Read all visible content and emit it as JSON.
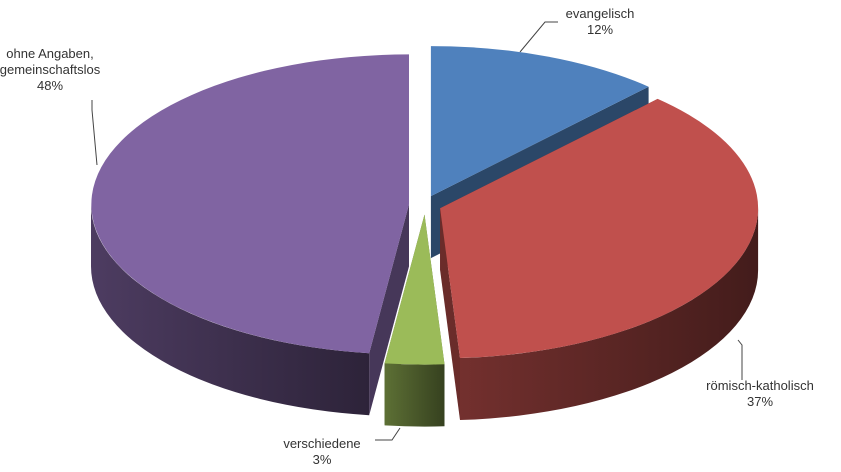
{
  "chart_data": {
    "type": "pie3d",
    "categories": [
      "evangelisch",
      "römisch-katholisch",
      "verschiedene",
      "ohne Angaben, gemeinschaftslos"
    ],
    "values": [
      12,
      37,
      3,
      48
    ],
    "value_labels": [
      "12%",
      "37%",
      "3%",
      "48%"
    ],
    "colors": [
      "#4f81bd",
      "#c0504d",
      "#9bbb59",
      "#8064a2"
    ]
  }
}
